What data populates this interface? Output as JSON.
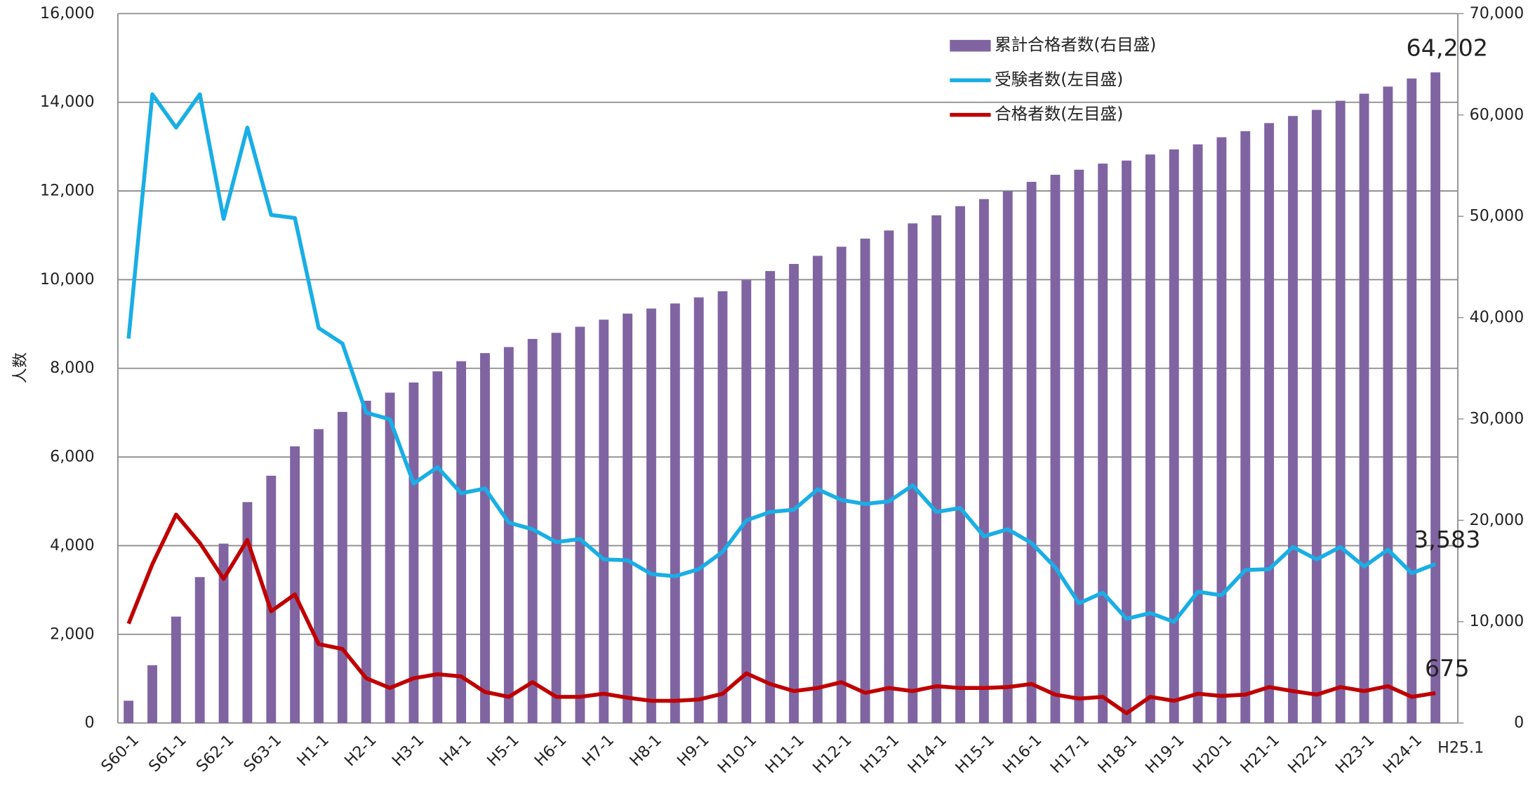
{
  "chart_data": {
    "type": "bar_line",
    "y_label": "人数",
    "categories": [
      "S60-1",
      null,
      "S61-1",
      null,
      "S62-1",
      null,
      "S63-1",
      null,
      "H1-1",
      null,
      "H2-1",
      null,
      "H3-1",
      null,
      "H4-1",
      null,
      "H5-1",
      null,
      "H6-1",
      null,
      "H7-1",
      null,
      "H8-1",
      null,
      "H9-1",
      null,
      "H10-1",
      null,
      "H11-1",
      null,
      "H12-1",
      null,
      "H13-1",
      null,
      "H14-1",
      null,
      "H15-1",
      null,
      "H16-1",
      null,
      "H17-1",
      null,
      "H18-1",
      null,
      "H19-1",
      null,
      "H20-1",
      null,
      "H21-1",
      null,
      "H22-1",
      null,
      "H23-1",
      null,
      "H24-1",
      "H25.1"
    ],
    "series": [
      {
        "name": "累計合格者数(右目盛)",
        "type": "bar",
        "axis": "y2",
        "color": "#8064a2",
        "values": [
          2200,
          5700,
          10500,
          14400,
          17700,
          21800,
          24400,
          27300,
          29000,
          30700,
          31800,
          32600,
          33600,
          34700,
          35700,
          36500,
          37100,
          37900,
          38500,
          39100,
          39800,
          40400,
          40900,
          41400,
          42000,
          42600,
          43700,
          44600,
          45300,
          46100,
          47000,
          47800,
          48600,
          49300,
          50100,
          51000,
          51700,
          52500,
          53400,
          54100,
          54600,
          55200,
          55500,
          56100,
          56600,
          57100,
          57800,
          58400,
          59200,
          59900,
          60500,
          61400,
          62100,
          62800,
          63600,
          64202
        ],
        "value_labels": [
          null,
          null,
          null,
          null,
          null,
          null,
          null,
          null,
          null,
          null,
          null,
          null,
          null,
          null,
          null,
          null,
          null,
          null,
          null,
          null,
          null,
          null,
          null,
          null,
          null,
          null,
          null,
          null,
          null,
          null,
          null,
          null,
          null,
          null,
          null,
          null,
          null,
          null,
          null,
          null,
          null,
          null,
          null,
          null,
          null,
          null,
          null,
          null,
          null,
          null,
          null,
          null,
          null,
          null,
          null,
          "64,202"
        ]
      },
      {
        "name": "受験者数(左目盛)",
        "type": "line",
        "axis": "y",
        "color": "#19aee6",
        "values": [
          8670,
          14180,
          13430,
          14180,
          11370,
          13430,
          11460,
          11390,
          8910,
          8560,
          7000,
          6850,
          5400,
          5770,
          5180,
          5290,
          4520,
          4370,
          4080,
          4150,
          3690,
          3670,
          3360,
          3310,
          3470,
          3860,
          4570,
          4760,
          4810,
          5270,
          5030,
          4940,
          5000,
          5360,
          4760,
          4850,
          4210,
          4370,
          4060,
          3510,
          2700,
          2940,
          2350,
          2480,
          2280,
          2960,
          2880,
          3450,
          3470,
          3970,
          3690,
          3970,
          3530,
          3910,
          3380,
          3583
        ],
        "value_labels": [
          null,
          null,
          null,
          null,
          null,
          null,
          null,
          null,
          null,
          null,
          null,
          null,
          null,
          null,
          null,
          null,
          null,
          null,
          null,
          null,
          null,
          null,
          null,
          null,
          null,
          null,
          null,
          null,
          null,
          null,
          null,
          null,
          null,
          null,
          null,
          null,
          null,
          null,
          null,
          null,
          null,
          null,
          null,
          null,
          null,
          null,
          null,
          null,
          null,
          null,
          null,
          null,
          null,
          null,
          null,
          "3,583"
        ]
      },
      {
        "name": "合格者数(左目盛)",
        "type": "line",
        "axis": "y",
        "color": "#c00000",
        "values": [
          2240,
          3580,
          4700,
          4060,
          3250,
          4130,
          2520,
          2900,
          1780,
          1670,
          1010,
          790,
          1010,
          1100,
          1050,
          700,
          590,
          920,
          590,
          590,
          660,
          570,
          500,
          500,
          530,
          660,
          1120,
          880,
          720,
          790,
          920,
          680,
          790,
          720,
          830,
          790,
          790,
          810,
          880,
          640,
          550,
          590,
          220,
          590,
          500,
          660,
          610,
          640,
          810,
          720,
          640,
          810,
          720,
          830,
          590,
          675
        ],
        "value_labels": [
          null,
          null,
          null,
          null,
          null,
          null,
          null,
          null,
          null,
          null,
          null,
          null,
          null,
          null,
          null,
          null,
          null,
          null,
          null,
          null,
          null,
          null,
          null,
          null,
          null,
          null,
          null,
          null,
          null,
          null,
          null,
          null,
          null,
          null,
          null,
          null,
          null,
          null,
          null,
          null,
          null,
          null,
          null,
          null,
          null,
          null,
          null,
          null,
          null,
          null,
          null,
          null,
          null,
          null,
          null,
          "675"
        ]
      }
    ],
    "ylim": [
      0,
      16000
    ],
    "yticks": [
      0,
      {
        "value": 2000,
        "label": "2,000"
      },
      {
        "value": 4000,
        "label": "4,000"
      },
      {
        "value": 6000,
        "label": "6,000"
      },
      {
        "value": 8000,
        "label": "8,000"
      },
      {
        "value": 10000,
        "label": "10,000"
      },
      {
        "value": 12000,
        "label": "12,000"
      },
      {
        "value": 14000,
        "label": "14,000"
      },
      {
        "value": 16000,
        "label": "16,000"
      }
    ],
    "y2lim": [
      0,
      70000
    ],
    "y2ticks": [
      0,
      {
        "value": 10000,
        "label": "10,000"
      },
      {
        "value": 20000,
        "label": "20,000"
      },
      {
        "value": 30000,
        "label": "30,000"
      },
      {
        "value": 40000,
        "label": "40,000"
      },
      {
        "value": 50000,
        "label": "50,000"
      },
      {
        "value": 60000,
        "label": "60,000"
      },
      {
        "value": 70000,
        "label": "70,000"
      }
    ],
    "grid": true,
    "legend": "top-right"
  }
}
